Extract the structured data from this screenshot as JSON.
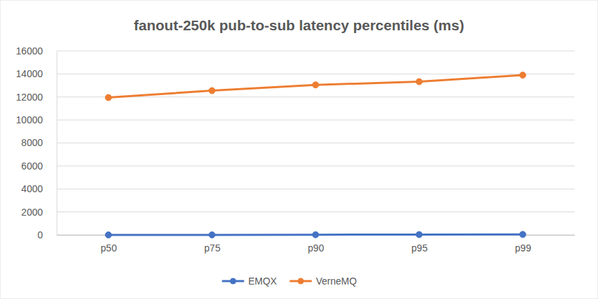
{
  "chart_data": {
    "type": "line",
    "title": "fanout-250k pub-to-sub latency percentiles (ms)",
    "categories": [
      "p50",
      "p75",
      "p90",
      "p95",
      "p99"
    ],
    "series": [
      {
        "name": "EMQX",
        "color": "#4472c4",
        "values": [
          3,
          5,
          20,
          30,
          40
        ]
      },
      {
        "name": "VerneMQ",
        "color": "#ed7d31",
        "values": [
          11950,
          12550,
          13050,
          13330,
          13900
        ]
      }
    ],
    "ylim": [
      0,
      16000
    ],
    "yticks": [
      0,
      2000,
      4000,
      6000,
      8000,
      10000,
      12000,
      14000,
      16000
    ],
    "grid": true,
    "legend": "bottom",
    "marker": "circle",
    "line_style": "solid"
  }
}
